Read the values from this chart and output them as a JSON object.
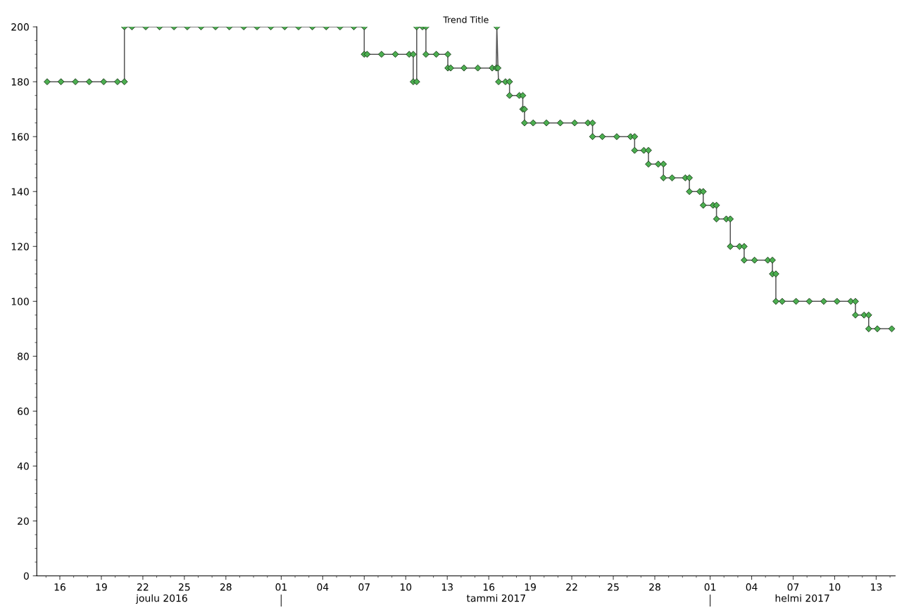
{
  "chart_data": {
    "type": "line",
    "title": "Trend Title",
    "marker": "diamond",
    "line_style": "solid",
    "grid": false,
    "series": [
      {
        "color": "#4caf50",
        "x": [
          "2016-12-15T02:00",
          "2016-12-16T02:00",
          "2016-12-17T03:00",
          "2016-12-18T03:00",
          "2016-12-19T04:00",
          "2016-12-20T04:00",
          "2016-12-20T16:00",
          "2016-12-20T16:00",
          "2016-12-21T05:00",
          "2016-12-22T05:00",
          "2016-12-23T05:00",
          "2016-12-24T06:00",
          "2016-12-25T05:00",
          "2016-12-26T05:00",
          "2016-12-27T06:00",
          "2016-12-28T06:00",
          "2016-12-29T07:00",
          "2016-12-30T06:00",
          "2016-12-31T06:00",
          "2017-01-01T06:00",
          "2017-01-02T06:00",
          "2017-01-03T06:00",
          "2017-01-04T06:00",
          "2017-01-05T06:00",
          "2017-01-06T06:00",
          "2017-01-07T00:00",
          "2017-01-07T00:00",
          "2017-01-07T05:00",
          "2017-01-08T06:00",
          "2017-01-09T06:00",
          "2017-01-10T06:00",
          "2017-01-10T13:00",
          "2017-01-10T13:00",
          "2017-01-10T19:00",
          "2017-01-10T19:00",
          "2017-01-11T05:00",
          "2017-01-11T11:00",
          "2017-01-11T11:00",
          "2017-01-12T05:00",
          "2017-01-13T01:00",
          "2017-01-13T01:00",
          "2017-01-13T06:00",
          "2017-01-14T05:00",
          "2017-01-15T05:00",
          "2017-01-16T06:00",
          "2017-01-16T13:00",
          "2017-01-16T14:00",
          "2017-01-16T16:00",
          "2017-01-16T17:00",
          "2017-01-17T05:00",
          "2017-01-17T12:00",
          "2017-01-17T12:00",
          "2017-01-18T05:00",
          "2017-01-18T11:00",
          "2017-01-18T11:00",
          "2017-01-18T14:00",
          "2017-01-18T14:00",
          "2017-01-19T05:00",
          "2017-01-20T04:00",
          "2017-01-21T04:00",
          "2017-01-22T05:00",
          "2017-01-23T04:00",
          "2017-01-23T12:00",
          "2017-01-23T12:00",
          "2017-01-24T05:00",
          "2017-01-25T06:00",
          "2017-01-26T06:00",
          "2017-01-26T13:00",
          "2017-01-26T13:00",
          "2017-01-27T05:00",
          "2017-01-27T13:00",
          "2017-01-27T13:00",
          "2017-01-28T06:00",
          "2017-01-28T15:00",
          "2017-01-28T15:00",
          "2017-01-29T06:00",
          "2017-01-30T05:00",
          "2017-01-30T12:00",
          "2017-01-30T12:00",
          "2017-01-31T06:00",
          "2017-01-31T12:00",
          "2017-01-31T12:00",
          "2017-02-01T05:00",
          "2017-02-01T11:00",
          "2017-02-01T11:00",
          "2017-02-02T04:00",
          "2017-02-02T11:00",
          "2017-02-02T11:00",
          "2017-02-03T03:00",
          "2017-02-03T11:00",
          "2017-02-03T11:00",
          "2017-02-04T05:00",
          "2017-02-05T04:00",
          "2017-02-05T12:00",
          "2017-02-05T12:00",
          "2017-02-05T18:00",
          "2017-02-05T18:00",
          "2017-02-06T05:00",
          "2017-02-07T05:00",
          "2017-02-08T04:00",
          "2017-02-09T05:00",
          "2017-02-10T04:00",
          "2017-02-11T04:00",
          "2017-02-11T12:00",
          "2017-02-11T12:00",
          "2017-02-12T03:00",
          "2017-02-12T11:00",
          "2017-02-12T11:00",
          "2017-02-13T02:00",
          "2017-02-14T03:00"
        ],
        "values": [
          180,
          180,
          180,
          180,
          180,
          180,
          180,
          200,
          200,
          200,
          200,
          200,
          200,
          200,
          200,
          200,
          200,
          200,
          200,
          200,
          200,
          200,
          200,
          200,
          200,
          200,
          190,
          190,
          190,
          190,
          190,
          190,
          180,
          180,
          200,
          200,
          200,
          190,
          190,
          190,
          185,
          185,
          185,
          185,
          185,
          185,
          200,
          185,
          180,
          180,
          180,
          175,
          175,
          175,
          170,
          170,
          165,
          165,
          165,
          165,
          165,
          165,
          165,
          160,
          160,
          160,
          160,
          160,
          155,
          155,
          155,
          150,
          150,
          150,
          145,
          145,
          145,
          145,
          140,
          140,
          140,
          135,
          135,
          135,
          130,
          130,
          130,
          120,
          120,
          120,
          115,
          115,
          115,
          115,
          110,
          110,
          100,
          100,
          100,
          100,
          100,
          100,
          100,
          100,
          95,
          95,
          95,
          90,
          90,
          90
        ]
      }
    ],
    "xlim": [
      "2016-12-14T08:00",
      "2017-02-14T09:00"
    ],
    "xticks": [
      {
        "value": "2016-12-16",
        "label": "16"
      },
      {
        "value": "2016-12-19",
        "label": "19"
      },
      {
        "value": "2016-12-22",
        "label": "22"
      },
      {
        "value": "2016-12-25",
        "label": "25"
      },
      {
        "value": "2016-12-28",
        "label": "28"
      },
      {
        "value": "2017-01-01",
        "label": "01"
      },
      {
        "value": "2017-01-04",
        "label": "04"
      },
      {
        "value": "2017-01-07",
        "label": "07"
      },
      {
        "value": "2017-01-10",
        "label": "10"
      },
      {
        "value": "2017-01-13",
        "label": "13"
      },
      {
        "value": "2017-01-16",
        "label": "16"
      },
      {
        "value": "2017-01-19",
        "label": "19"
      },
      {
        "value": "2017-01-22",
        "label": "22"
      },
      {
        "value": "2017-01-25",
        "label": "25"
      },
      {
        "value": "2017-01-28",
        "label": "28"
      },
      {
        "value": "2017-02-01",
        "label": "01"
      },
      {
        "value": "2017-02-04",
        "label": "04"
      },
      {
        "value": "2017-02-07",
        "label": "07"
      },
      {
        "value": "2017-02-10",
        "label": "10"
      },
      {
        "value": "2017-02-13",
        "label": "13"
      }
    ],
    "x2lim": [
      "2016-12-14T08:00",
      "2017-02-14T09:00"
    ],
    "x2ticks": [
      {
        "value": "2016-12-23T09:00",
        "label": "joulu 2016"
      },
      {
        "value": "2017-01-01",
        "label": null
      },
      {
        "value": "2017-01-16T13:00",
        "label": "tammi 2017"
      },
      {
        "value": "2017-02-01",
        "label": null
      },
      {
        "value": "2017-02-07T16:00",
        "label": "helmi 2017"
      }
    ],
    "ylim": [
      0,
      200
    ],
    "yticks": [
      0,
      20,
      40,
      60,
      80,
      100,
      120,
      140,
      160,
      180,
      200
    ]
  }
}
